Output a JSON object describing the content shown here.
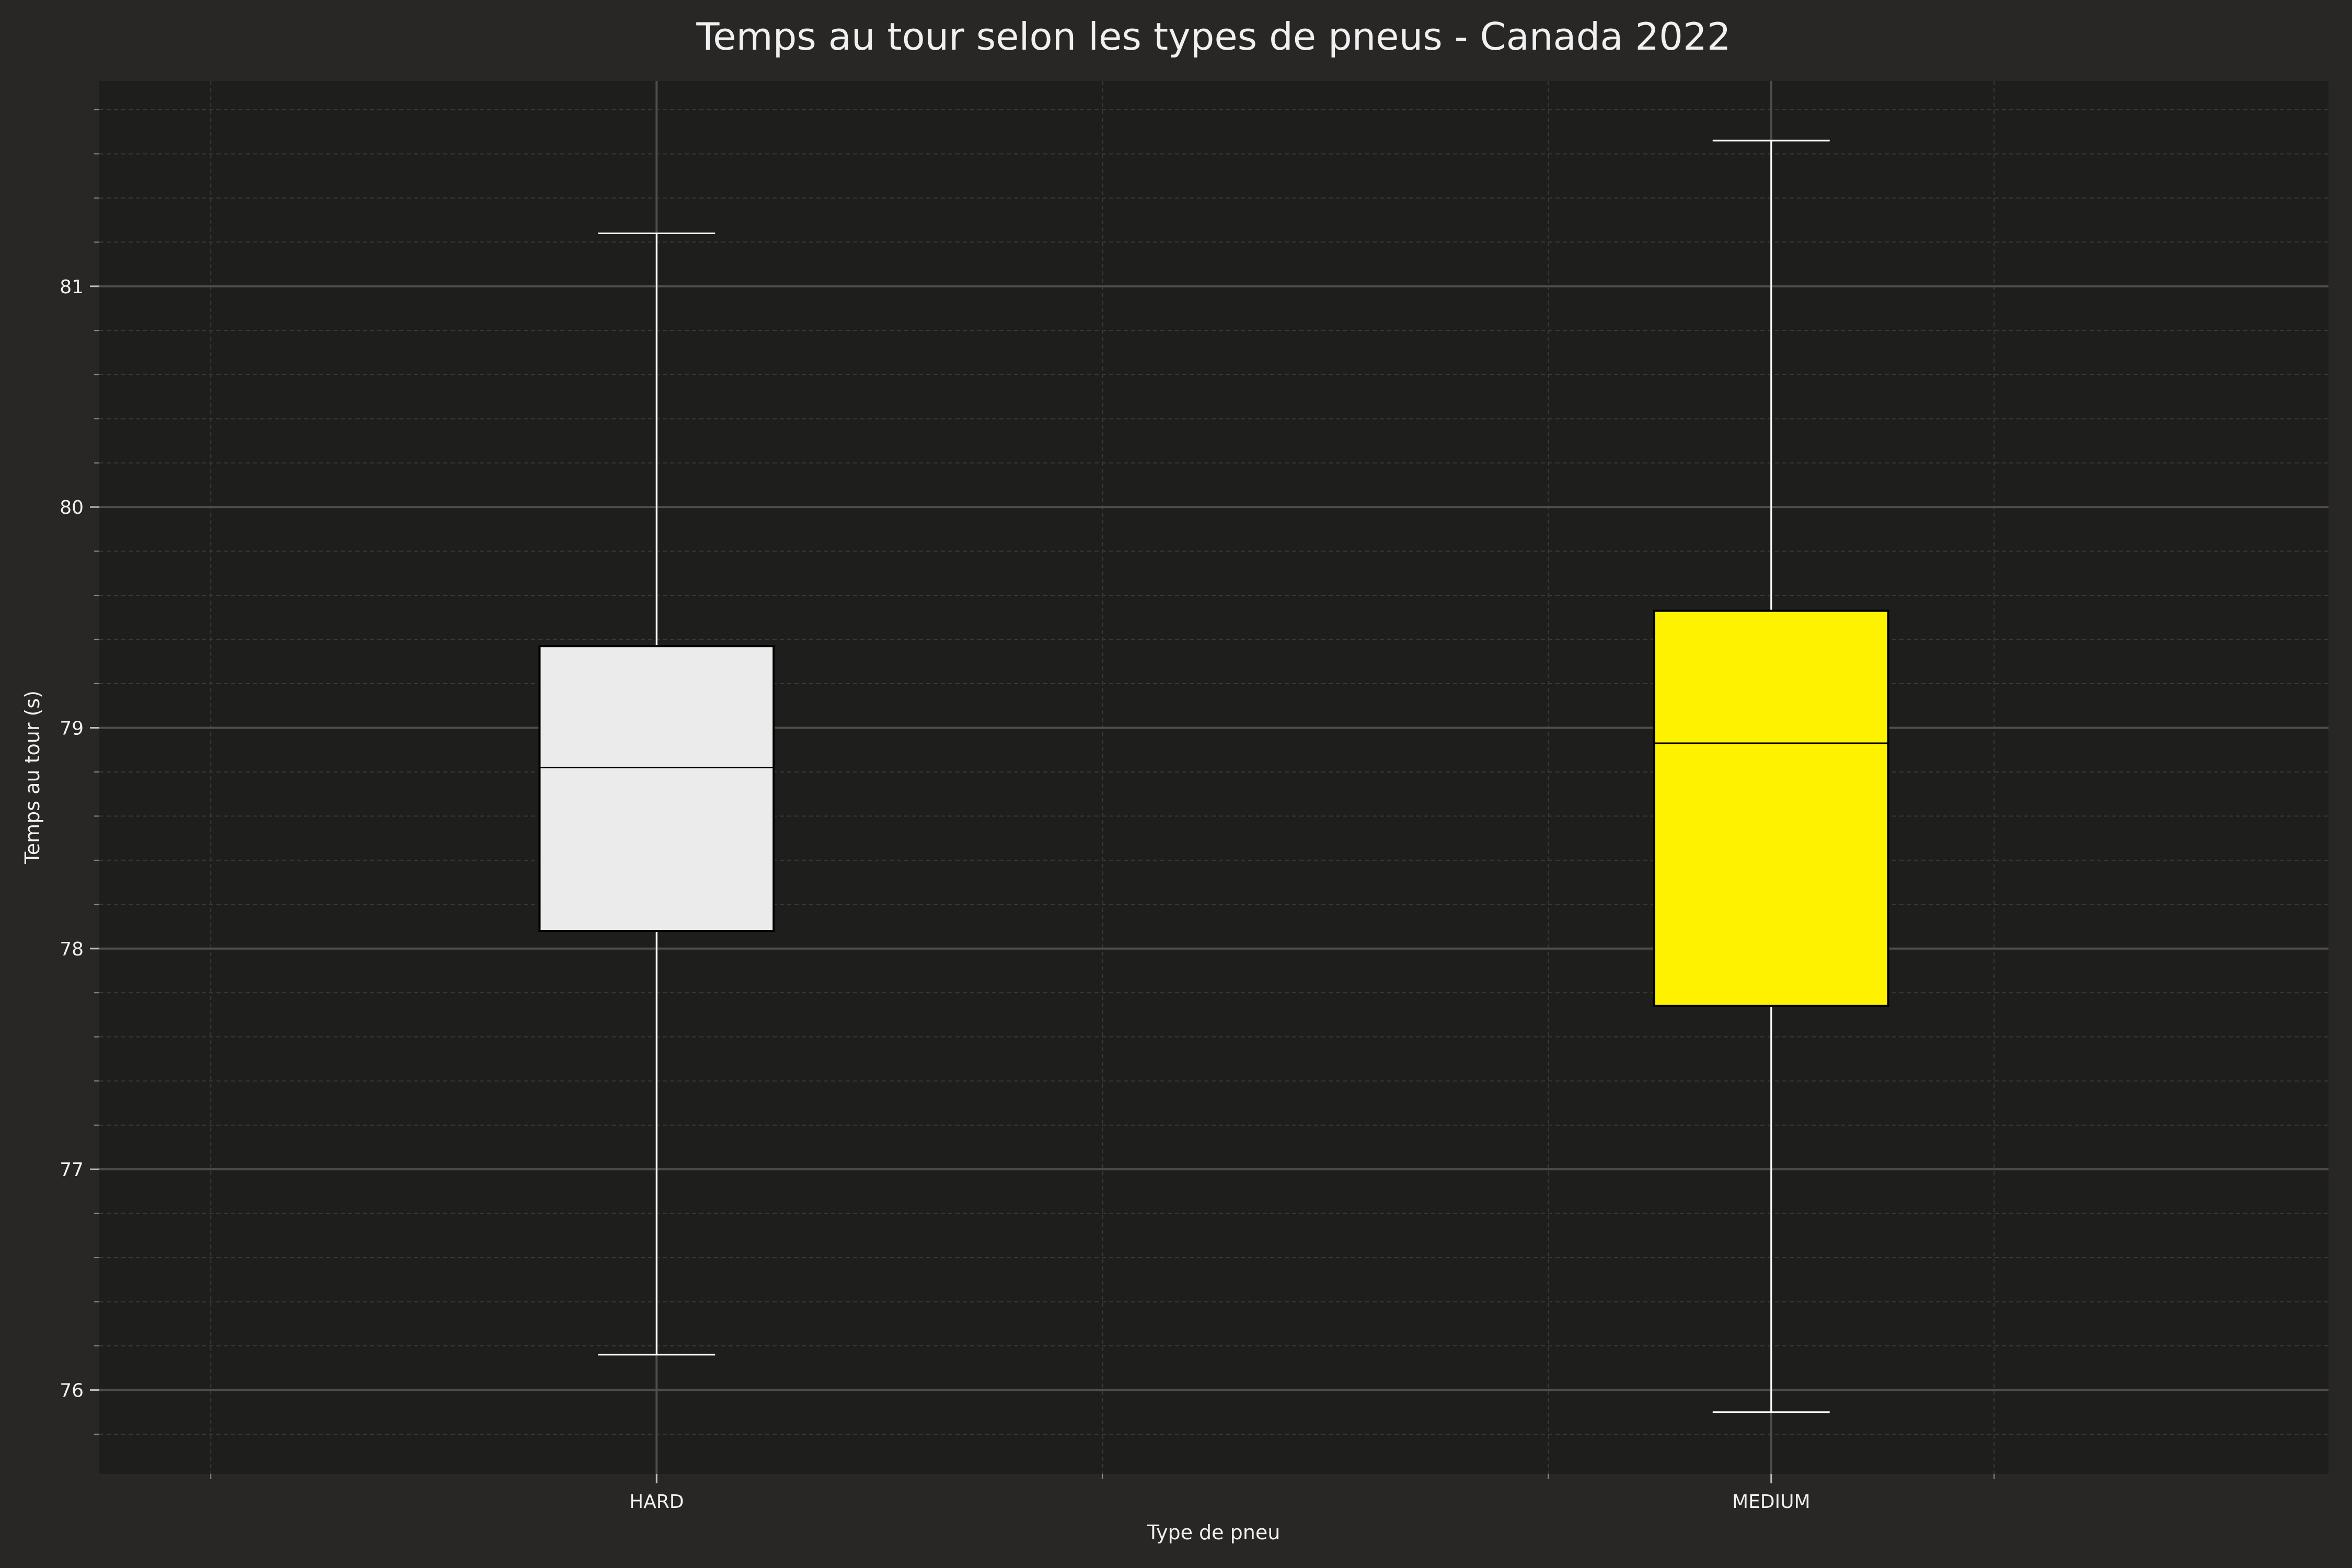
{
  "chart_data": {
    "type": "box",
    "title": "Temps au tour selon les types de pneus - Canada 2022",
    "xlabel": "Type de pneu",
    "ylabel": "Temps au tour (s)",
    "categories": [
      "HARD",
      "MEDIUM"
    ],
    "boxes": [
      {
        "name": "HARD",
        "whisker_low": 76.16,
        "q1": 78.08,
        "median": 78.82,
        "q3": 79.37,
        "whisker_high": 81.24,
        "color": "#EBEBEB"
      },
      {
        "name": "MEDIUM",
        "whisker_low": 75.9,
        "q1": 77.74,
        "median": 78.93,
        "q3": 79.53,
        "whisker_high": 81.66,
        "color": "#FFF200"
      }
    ],
    "ylim": [
      75.62,
      81.93
    ],
    "yticks": [
      76,
      77,
      78,
      79,
      80,
      81
    ],
    "grid": true,
    "colors": {
      "background": "#292726",
      "plot_background": "#1E1E1D",
      "text": "#F0F0F0",
      "major_grid": "#4E4D4B",
      "minor_grid": "#3A3938",
      "whisker": "#FFFFFF",
      "box_edge": "#000000"
    }
  }
}
